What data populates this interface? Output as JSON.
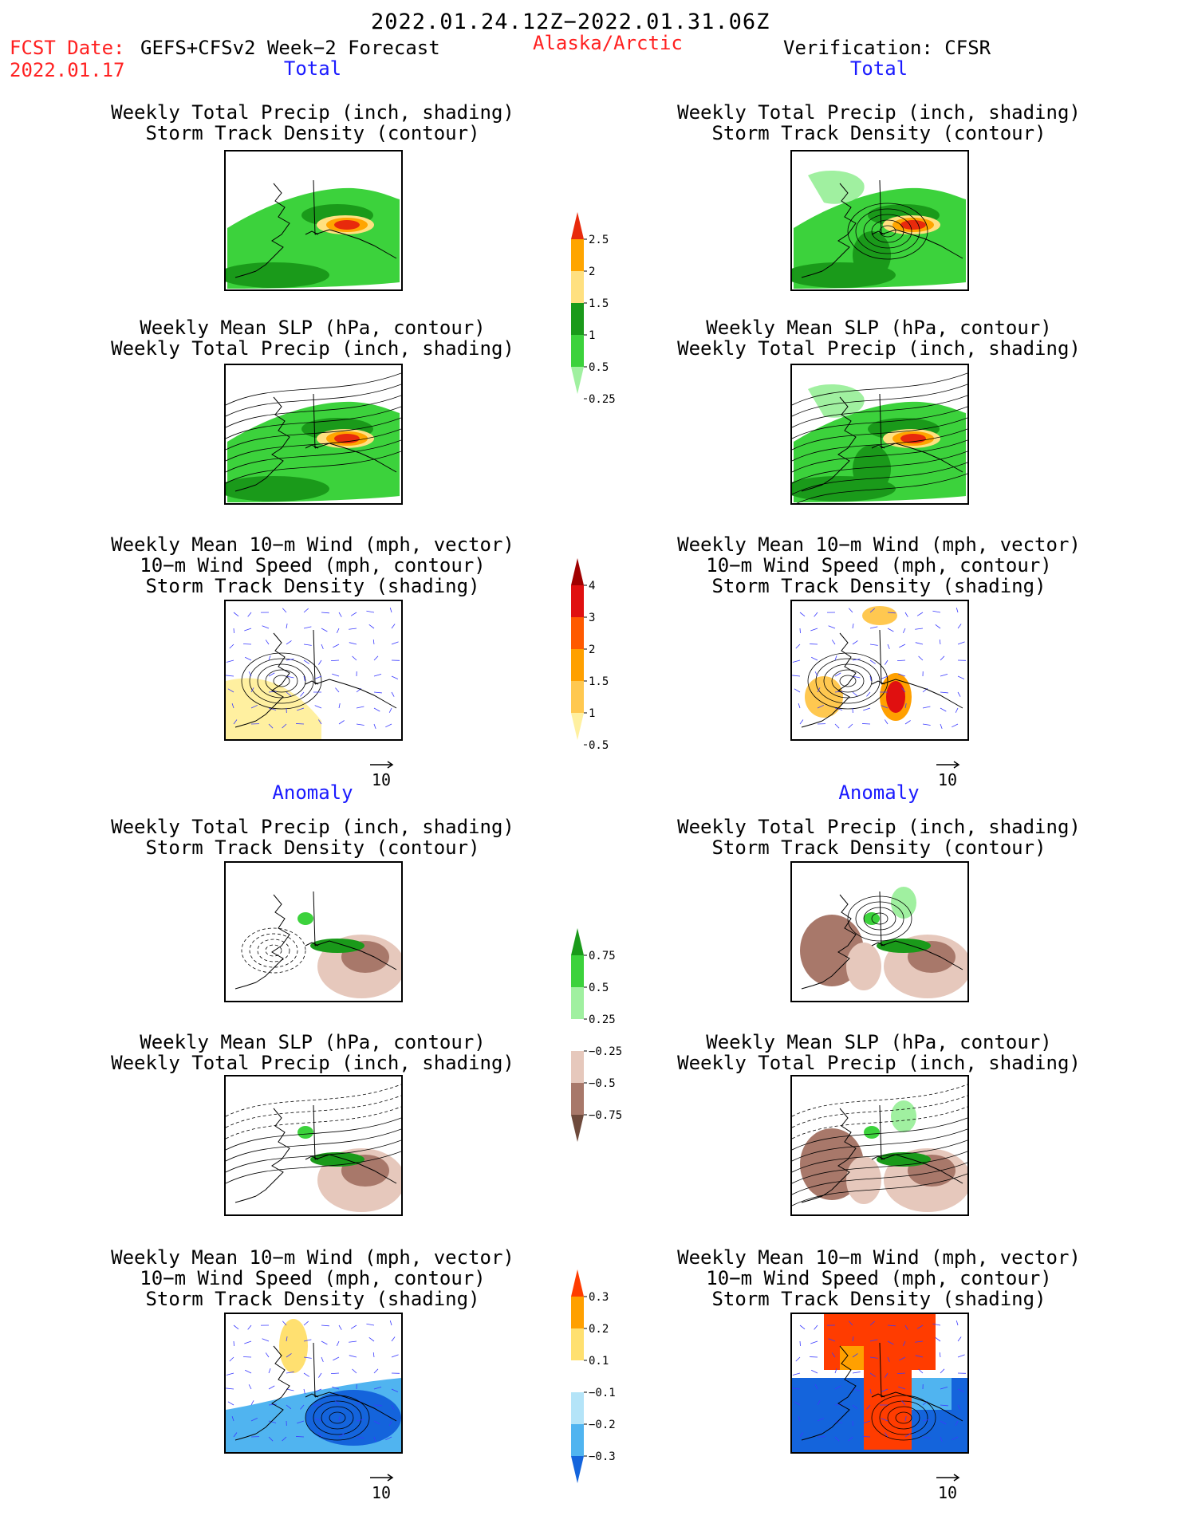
{
  "header": {
    "period": "2022.01.24.12Z−2022.01.31.06Z",
    "fcst_label": "FCST Date:",
    "fcst_model": "GEFS+CFSv2 Week−2 Forecast",
    "fcst_date": "2022.01.17",
    "region": "Alaska/Arctic",
    "verification": "Verification: CFSR"
  },
  "sections": {
    "total": "Total",
    "anomaly": "Anomaly"
  },
  "panel_titles": {
    "precip_track": [
      "Weekly Total Precip (inch, shading)",
      "Storm Track Density (contour)"
    ],
    "slp_precip": [
      "Weekly Mean SLP (hPa, contour)",
      "Weekly Total Precip (inch, shading)"
    ],
    "wind_track": [
      "Weekly Mean 10−m Wind (mph, vector)",
      "10−m Wind Speed (mph, contour)",
      "Storm Track Density (shading)"
    ]
  },
  "reference_vector": "10",
  "colorbars": [
    {
      "name": "total-precip",
      "labels": [
        "2.5",
        "2",
        "1.5",
        "1",
        "0.5",
        "0.25"
      ],
      "colors": [
        "#e82a0c",
        "#ffa500",
        "#ffe080",
        "#1a9a1a",
        "#3cd23c",
        "#a0f0a0"
      ]
    },
    {
      "name": "total-storm-density",
      "labels": [
        "4",
        "3",
        "2",
        "1.5",
        "1",
        "0.5"
      ],
      "colors": [
        "#a00000",
        "#e01010",
        "#ff5a00",
        "#ffa000",
        "#ffc850",
        "#fff0a0"
      ]
    },
    {
      "name": "anomaly-precip",
      "labels": [
        "0.75",
        "0.5",
        "0.25",
        "−0.25",
        "−0.5",
        "−0.75"
      ],
      "colors": [
        "#1a9a1a",
        "#3cd23c",
        "#a0f0a0",
        "#ffffff",
        "#e6c8bc",
        "#a8786a",
        "#6e4a3c"
      ]
    },
    {
      "name": "anomaly-storm-density",
      "labels": [
        "0.3",
        "0.2",
        "0.1",
        "−0.1",
        "−0.2",
        "−0.3"
      ],
      "colors": [
        "#ff3c00",
        "#ffa000",
        "#ffe070",
        "#ffffff",
        "#b4e4f8",
        "#50b4f0",
        "#1464dc"
      ]
    }
  ],
  "chart_data": [
    {
      "type": "heatmap",
      "name": "forecast-total-precip-track",
      "region": "Alaska/Arctic",
      "fields": [
        "Weekly Total Precip (inch)",
        "Storm Track Density"
      ]
    },
    {
      "type": "heatmap",
      "name": "forecast-total-slp-precip",
      "region": "Alaska/Arctic",
      "fields": [
        "Weekly Mean SLP (hPa)",
        "Weekly Total Precip (inch)"
      ]
    },
    {
      "type": "heatmap",
      "name": "forecast-total-wind-track",
      "region": "Alaska/Arctic",
      "fields": [
        "Weekly Mean 10-m Wind (mph)",
        "10-m Wind Speed (mph)",
        "Storm Track Density"
      ]
    },
    {
      "type": "heatmap",
      "name": "verification-total-precip-track",
      "region": "Alaska/Arctic",
      "fields": [
        "Weekly Total Precip (inch)",
        "Storm Track Density"
      ]
    },
    {
      "type": "heatmap",
      "name": "verification-total-slp-precip",
      "region": "Alaska/Arctic",
      "fields": [
        "Weekly Mean SLP (hPa)",
        "Weekly Total Precip (inch)"
      ]
    },
    {
      "type": "heatmap",
      "name": "verification-total-wind-track",
      "region": "Alaska/Arctic",
      "fields": [
        "Weekly Mean 10-m Wind (mph)",
        "10-m Wind Speed (mph)",
        "Storm Track Density"
      ]
    },
    {
      "type": "heatmap",
      "name": "forecast-anomaly-precip-track",
      "region": "Alaska/Arctic",
      "fields": [
        "Weekly Total Precip (inch)",
        "Storm Track Density"
      ]
    },
    {
      "type": "heatmap",
      "name": "forecast-anomaly-slp-precip",
      "region": "Alaska/Arctic",
      "fields": [
        "Weekly Mean SLP (hPa)",
        "Weekly Total Precip (inch)"
      ]
    },
    {
      "type": "heatmap",
      "name": "forecast-anomaly-wind-track",
      "region": "Alaska/Arctic",
      "fields": [
        "Weekly Mean 10-m Wind (mph)",
        "10-m Wind Speed (mph)",
        "Storm Track Density"
      ]
    },
    {
      "type": "heatmap",
      "name": "verification-anomaly-precip-track",
      "region": "Alaska/Arctic",
      "fields": [
        "Weekly Total Precip (inch)",
        "Storm Track Density"
      ]
    },
    {
      "type": "heatmap",
      "name": "verification-anomaly-slp-precip",
      "region": "Alaska/Arctic",
      "fields": [
        "Weekly Mean SLP (hPa)",
        "Weekly Total Precip (inch)"
      ]
    },
    {
      "type": "heatmap",
      "name": "verification-anomaly-wind-track",
      "region": "Alaska/Arctic",
      "fields": [
        "Weekly Mean 10-m Wind (mph)",
        "10-m Wind Speed (mph)",
        "Storm Track Density"
      ]
    }
  ]
}
